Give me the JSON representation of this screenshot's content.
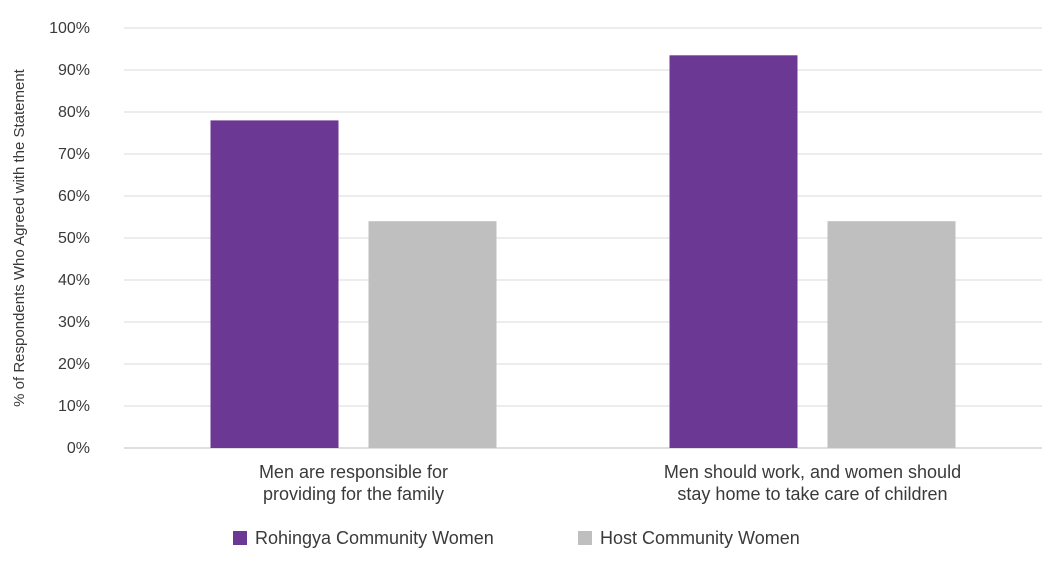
{
  "chart_data": {
    "type": "bar",
    "title": "",
    "xlabel": "",
    "ylabel": "% of Respondents Who Agreed with the Statement",
    "ylim": [
      0,
      100
    ],
    "yticks": [
      "0%",
      "10%",
      "20%",
      "30%",
      "40%",
      "50%",
      "60%",
      "70%",
      "80%",
      "90%",
      "100%"
    ],
    "categories": [
      [
        "Men are responsible for",
        "providing for the family"
      ],
      [
        "Men should work, and women should",
        "stay home to take care of children"
      ]
    ],
    "series": [
      {
        "name": "Rohingya Community Women",
        "color": "#6b3894",
        "values": [
          78,
          93.5
        ]
      },
      {
        "name": "Host Community Women",
        "color": "#bfbfbf",
        "values": [
          54,
          54
        ]
      }
    ],
    "grid": true,
    "legend": "bottom"
  }
}
